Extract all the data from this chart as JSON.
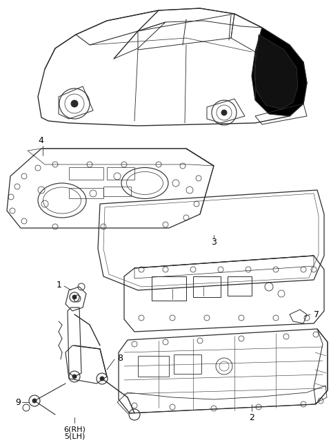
{
  "bg_color": "#ffffff",
  "fig_width": 4.8,
  "fig_height": 6.44,
  "dpi": 100,
  "lc": "#2a2a2a",
  "lw": 0.7
}
